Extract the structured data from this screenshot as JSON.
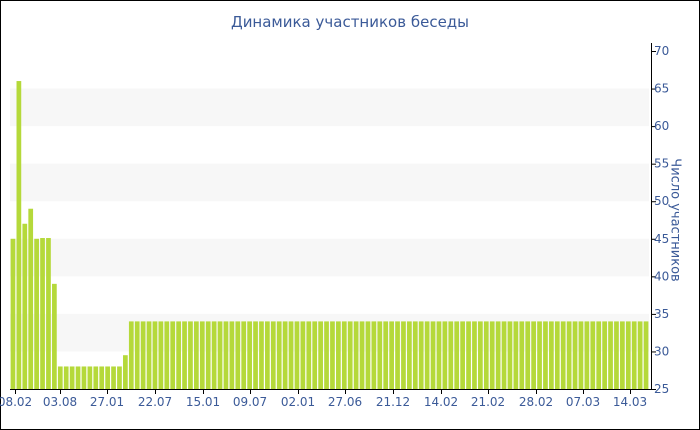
{
  "chart_data": {
    "type": "bar",
    "title": "Динамика участников беседы",
    "ylabel": "Число участников",
    "xlabel": "",
    "ylim": [
      25,
      70
    ],
    "yticks": [
      25,
      30,
      35,
      40,
      45,
      50,
      55,
      60,
      65,
      70
    ],
    "y_axis_side": "right",
    "grid": "horizontal alternating bands",
    "bar_color": "#b5d93a",
    "band_color": "#f7f7f7",
    "text_color": "#3b5a98",
    "xtick_labels": [
      "08.02",
      "03.08",
      "27.01",
      "22.07",
      "15.01",
      "09.07",
      "02.01",
      "27.06",
      "21.12",
      "14.02",
      "21.02",
      "28.02",
      "07.03",
      "14.03"
    ],
    "values": [
      45,
      66,
      47,
      49,
      45,
      45.1,
      45.1,
      39,
      28,
      28,
      28,
      28,
      28,
      28,
      28,
      28,
      28,
      28,
      28,
      29.5,
      34,
      34,
      34,
      34,
      34,
      34,
      34,
      34,
      34,
      34,
      34,
      34,
      34,
      34,
      34,
      34,
      34,
      34,
      34,
      34,
      34,
      34,
      34,
      34,
      34,
      34,
      34,
      34,
      34,
      34,
      34,
      34,
      34,
      34,
      34,
      34,
      34,
      34,
      34,
      34,
      34,
      34,
      34,
      34,
      34,
      34,
      34,
      34,
      34,
      34,
      34,
      34,
      34,
      34,
      34,
      34,
      34,
      34,
      34,
      34,
      34,
      34,
      34,
      34,
      34,
      34,
      34,
      34,
      34,
      34,
      34,
      34,
      34,
      34,
      34,
      34,
      34,
      34,
      34,
      34,
      34,
      34,
      34,
      34,
      34,
      34,
      34,
      34
    ]
  }
}
